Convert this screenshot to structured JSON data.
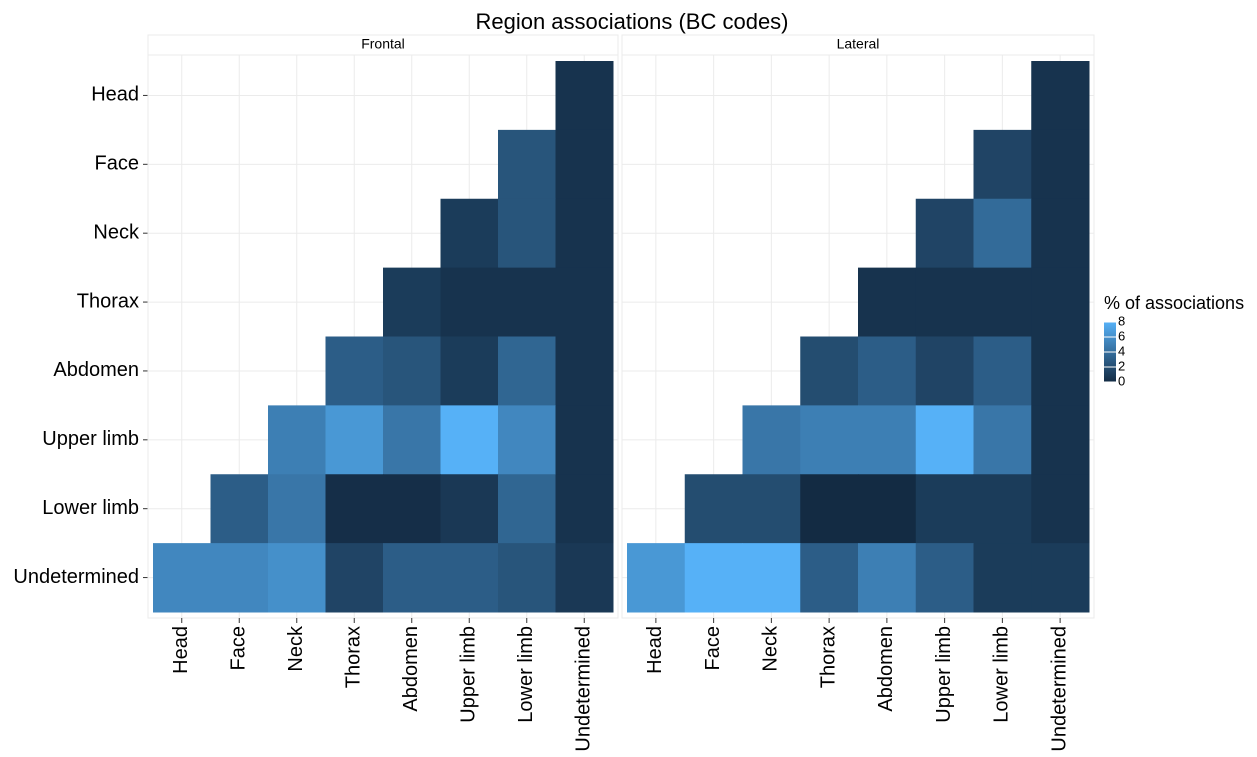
{
  "chart_data": {
    "type": "heatmap",
    "title": "Region associations (BC codes)",
    "x_categories": [
      "Head",
      "Face",
      "Neck",
      "Thorax",
      "Abdomen",
      "Upper limb",
      "Lower limb",
      "Undetermined"
    ],
    "y_categories": [
      "Head",
      "Face",
      "Neck",
      "Thorax",
      "Abdomen",
      "Upper limb",
      "Lower limb",
      "Undetermined"
    ],
    "facets": [
      {
        "name": "Frontal",
        "values": [
          [
            null,
            null,
            null,
            null,
            null,
            null,
            null,
            0.5
          ],
          [
            null,
            null,
            null,
            null,
            null,
            null,
            2.5,
            0.5
          ],
          [
            null,
            null,
            null,
            null,
            null,
            1,
            2.5,
            0.5
          ],
          [
            null,
            null,
            null,
            null,
            1,
            0.5,
            0.5,
            0.5
          ],
          [
            null,
            null,
            null,
            3,
            2.5,
            1,
            3.5,
            0.5
          ],
          [
            null,
            null,
            5,
            6.5,
            4.5,
            8,
            5.5,
            0.5
          ],
          [
            null,
            3,
            4.5,
            0.2,
            0.2,
            0.8,
            3.5,
            0.5
          ],
          [
            5.5,
            5.5,
            6,
            1.5,
            3,
            3,
            2.5,
            0.8
          ]
        ]
      },
      {
        "name": "Lateral",
        "values": [
          [
            null,
            null,
            null,
            null,
            null,
            null,
            null,
            0.5
          ],
          [
            null,
            null,
            null,
            null,
            null,
            null,
            1.5,
            0.5
          ],
          [
            null,
            null,
            null,
            null,
            null,
            1.5,
            3.8,
            0.5
          ],
          [
            null,
            null,
            null,
            null,
            0.5,
            0.5,
            0.5,
            0.5
          ],
          [
            null,
            null,
            null,
            2,
            3,
            1.5,
            3,
            0.5
          ],
          [
            null,
            null,
            4.5,
            5,
            5,
            8,
            4.5,
            0.5
          ],
          [
            null,
            2,
            2,
            0,
            0,
            1,
            1,
            0.5
          ],
          [
            6.5,
            8,
            8,
            3,
            5,
            3,
            1,
            1
          ]
        ]
      }
    ],
    "legend_title": "% of associations",
    "zlim": [
      0,
      8
    ],
    "zticks": [
      0,
      2,
      4,
      6,
      8
    ],
    "color_low": "#132b43",
    "color_high": "#56b1f7",
    "grid": true
  }
}
